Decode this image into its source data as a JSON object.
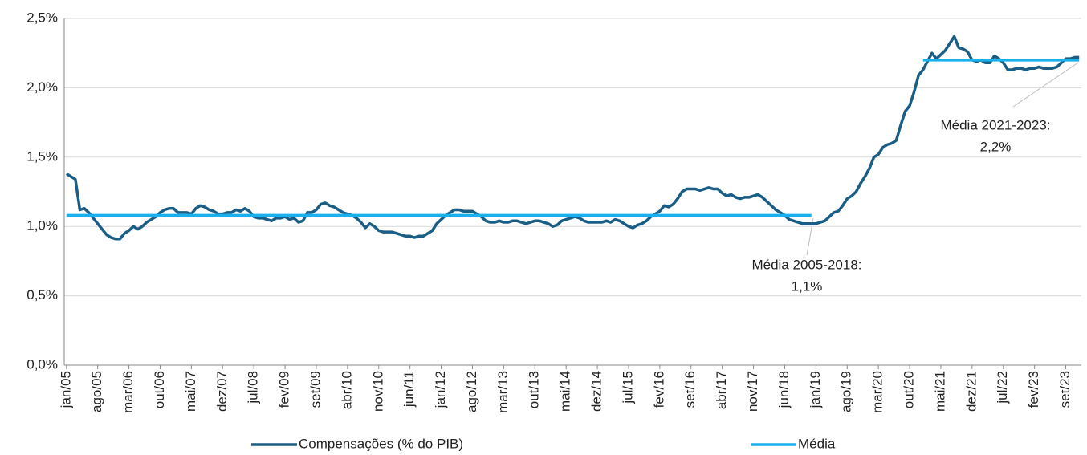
{
  "chart_data": {
    "type": "line",
    "categories": [
      "jan/05",
      null,
      null,
      null,
      null,
      null,
      null,
      "ago/05",
      null,
      null,
      null,
      null,
      null,
      null,
      "mar/06",
      null,
      null,
      null,
      null,
      null,
      null,
      "out/06",
      null,
      null,
      null,
      null,
      null,
      null,
      "mai/07",
      null,
      null,
      null,
      null,
      null,
      null,
      "dez/07",
      null,
      null,
      null,
      null,
      null,
      null,
      "jul/08",
      null,
      null,
      null,
      null,
      null,
      null,
      "fev/09",
      null,
      null,
      null,
      null,
      null,
      null,
      "set/09",
      null,
      null,
      null,
      null,
      null,
      null,
      "abr/10",
      null,
      null,
      null,
      null,
      null,
      null,
      "nov/10",
      null,
      null,
      null,
      null,
      null,
      null,
      "jun/11",
      null,
      null,
      null,
      null,
      null,
      null,
      "jan/12",
      null,
      null,
      null,
      null,
      null,
      null,
      "ago/12",
      null,
      null,
      null,
      null,
      null,
      null,
      "mar/13",
      null,
      null,
      null,
      null,
      null,
      null,
      "out/13",
      null,
      null,
      null,
      null,
      null,
      null,
      "mai/14",
      null,
      null,
      null,
      null,
      null,
      null,
      "dez/14",
      null,
      null,
      null,
      null,
      null,
      null,
      "jul/15",
      null,
      null,
      null,
      null,
      null,
      null,
      "fev/16",
      null,
      null,
      null,
      null,
      null,
      null,
      "set/16",
      null,
      null,
      null,
      null,
      null,
      null,
      "abr/17",
      null,
      null,
      null,
      null,
      null,
      null,
      "nov/17",
      null,
      null,
      null,
      null,
      null,
      null,
      "jun/18",
      null,
      null,
      null,
      null,
      null,
      null,
      "jan/19",
      null,
      null,
      null,
      null,
      null,
      null,
      "ago/19",
      null,
      null,
      null,
      null,
      null,
      null,
      "mar/20",
      null,
      null,
      null,
      null,
      null,
      null,
      "out/20",
      null,
      null,
      null,
      null,
      null,
      null,
      "mai/21",
      null,
      null,
      null,
      null,
      null,
      null,
      "dez/21",
      null,
      null,
      null,
      null,
      null,
      null,
      "jul/22",
      null,
      null,
      null,
      null,
      null,
      null,
      "fev/23",
      null,
      null,
      null,
      null,
      null,
      null,
      "set/23",
      null,
      null,
      null
    ],
    "series": [
      {
        "name": "Compensações (% do PIB)",
        "color": "#1b5e85",
        "values": [
          1.38,
          1.36,
          1.34,
          1.12,
          1.13,
          1.1,
          1.06,
          1.02,
          0.98,
          0.94,
          0.92,
          0.91,
          0.91,
          0.95,
          0.97,
          1.0,
          0.98,
          1.0,
          1.03,
          1.05,
          1.07,
          1.1,
          1.12,
          1.13,
          1.13,
          1.1,
          1.1,
          1.1,
          1.09,
          1.13,
          1.15,
          1.14,
          1.12,
          1.11,
          1.09,
          1.09,
          1.1,
          1.1,
          1.12,
          1.11,
          1.13,
          1.11,
          1.07,
          1.06,
          1.06,
          1.05,
          1.04,
          1.06,
          1.06,
          1.07,
          1.05,
          1.06,
          1.03,
          1.04,
          1.1,
          1.1,
          1.12,
          1.16,
          1.17,
          1.15,
          1.14,
          1.12,
          1.1,
          1.09,
          1.08,
          1.06,
          1.03,
          0.99,
          1.02,
          1.0,
          0.97,
          0.96,
          0.96,
          0.96,
          0.95,
          0.94,
          0.93,
          0.93,
          0.92,
          0.93,
          0.93,
          0.95,
          0.97,
          1.02,
          1.05,
          1.08,
          1.1,
          1.12,
          1.12,
          1.11,
          1.11,
          1.11,
          1.09,
          1.07,
          1.04,
          1.03,
          1.03,
          1.04,
          1.03,
          1.03,
          1.04,
          1.04,
          1.03,
          1.02,
          1.03,
          1.04,
          1.04,
          1.03,
          1.02,
          1.0,
          1.01,
          1.04,
          1.05,
          1.06,
          1.07,
          1.06,
          1.04,
          1.03,
          1.03,
          1.03,
          1.03,
          1.04,
          1.03,
          1.05,
          1.04,
          1.02,
          1.0,
          0.99,
          1.01,
          1.02,
          1.04,
          1.07,
          1.09,
          1.11,
          1.15,
          1.14,
          1.16,
          1.2,
          1.25,
          1.27,
          1.27,
          1.27,
          1.26,
          1.27,
          1.28,
          1.27,
          1.27,
          1.24,
          1.22,
          1.23,
          1.21,
          1.2,
          1.21,
          1.21,
          1.22,
          1.23,
          1.21,
          1.18,
          1.15,
          1.12,
          1.1,
          1.08,
          1.05,
          1.04,
          1.03,
          1.02,
          1.02,
          1.02,
          1.02,
          1.03,
          1.04,
          1.07,
          1.1,
          1.11,
          1.15,
          1.2,
          1.22,
          1.25,
          1.31,
          1.36,
          1.42,
          1.5,
          1.52,
          1.57,
          1.59,
          1.6,
          1.62,
          1.73,
          1.83,
          1.87,
          1.97,
          2.09,
          2.13,
          2.19,
          2.25,
          2.21,
          2.24,
          2.27,
          2.32,
          2.37,
          2.29,
          2.28,
          2.26,
          2.2,
          2.19,
          2.2,
          2.18,
          2.18,
          2.23,
          2.21,
          2.18,
          2.13,
          2.13,
          2.14,
          2.14,
          2.13,
          2.14,
          2.14,
          2.15,
          2.14,
          2.14,
          2.14,
          2.15,
          2.18,
          2.21,
          2.21,
          2.22,
          2.22
        ]
      },
      {
        "name": "Média",
        "color": "#1ab0ec",
        "values": [
          1.08,
          1.08,
          1.08,
          1.08,
          1.08,
          1.08,
          1.08,
          1.08,
          1.08,
          1.08,
          1.08,
          1.08,
          1.08,
          1.08,
          1.08,
          1.08,
          1.08,
          1.08,
          1.08,
          1.08,
          1.08,
          1.08,
          1.08,
          1.08,
          1.08,
          1.08,
          1.08,
          1.08,
          1.08,
          1.08,
          1.08,
          1.08,
          1.08,
          1.08,
          1.08,
          1.08,
          1.08,
          1.08,
          1.08,
          1.08,
          1.08,
          1.08,
          1.08,
          1.08,
          1.08,
          1.08,
          1.08,
          1.08,
          1.08,
          1.08,
          1.08,
          1.08,
          1.08,
          1.08,
          1.08,
          1.08,
          1.08,
          1.08,
          1.08,
          1.08,
          1.08,
          1.08,
          1.08,
          1.08,
          1.08,
          1.08,
          1.08,
          1.08,
          1.08,
          1.08,
          1.08,
          1.08,
          1.08,
          1.08,
          1.08,
          1.08,
          1.08,
          1.08,
          1.08,
          1.08,
          1.08,
          1.08,
          1.08,
          1.08,
          1.08,
          1.08,
          1.08,
          1.08,
          1.08,
          1.08,
          1.08,
          1.08,
          1.08,
          1.08,
          1.08,
          1.08,
          1.08,
          1.08,
          1.08,
          1.08,
          1.08,
          1.08,
          1.08,
          1.08,
          1.08,
          1.08,
          1.08,
          1.08,
          1.08,
          1.08,
          1.08,
          1.08,
          1.08,
          1.08,
          1.08,
          1.08,
          1.08,
          1.08,
          1.08,
          1.08,
          1.08,
          1.08,
          1.08,
          1.08,
          1.08,
          1.08,
          1.08,
          1.08,
          1.08,
          1.08,
          1.08,
          1.08,
          1.08,
          1.08,
          1.08,
          1.08,
          1.08,
          1.08,
          1.08,
          1.08,
          1.08,
          1.08,
          1.08,
          1.08,
          1.08,
          1.08,
          1.08,
          1.08,
          1.08,
          1.08,
          1.08,
          1.08,
          1.08,
          1.08,
          1.08,
          1.08,
          1.08,
          1.08,
          1.08,
          1.08,
          1.08,
          1.08,
          1.08,
          1.08,
          1.08,
          1.08,
          1.08,
          1.08,
          null,
          null,
          null,
          null,
          null,
          null,
          null,
          null,
          null,
          null,
          null,
          null,
          null,
          null,
          null,
          null,
          null,
          null,
          null,
          null,
          null,
          null,
          null,
          null,
          2.2,
          2.2,
          2.2,
          2.2,
          2.2,
          2.2,
          2.2,
          2.2,
          2.2,
          2.2,
          2.2,
          2.2,
          2.2,
          2.2,
          2.2,
          2.2,
          2.2,
          2.2,
          2.2,
          2.2,
          2.2,
          2.2,
          2.2,
          2.2,
          2.2,
          2.2,
          2.2,
          2.2,
          2.2,
          2.2,
          2.2,
          2.2,
          2.2,
          2.2,
          2.2,
          2.2
        ]
      }
    ],
    "ylim": [
      0,
      2.5
    ],
    "yticks": [
      {
        "value": 0,
        "label": "0,0%"
      },
      {
        "value": 0.5,
        "label": "0,5%"
      },
      {
        "value": 1,
        "label": "1,0%"
      },
      {
        "value": 1.5,
        "label": "1,5%"
      },
      {
        "value": 2,
        "label": "2,0%"
      },
      {
        "value": 2.5,
        "label": "2,5%"
      }
    ],
    "grid": true,
    "legend": "bottom",
    "annotations": [
      {
        "lines": [
          "Média 2005-2018:",
          "1,1%"
        ]
      },
      {
        "lines": [
          "Média 2021-2023:",
          "2,2%"
        ]
      }
    ]
  }
}
